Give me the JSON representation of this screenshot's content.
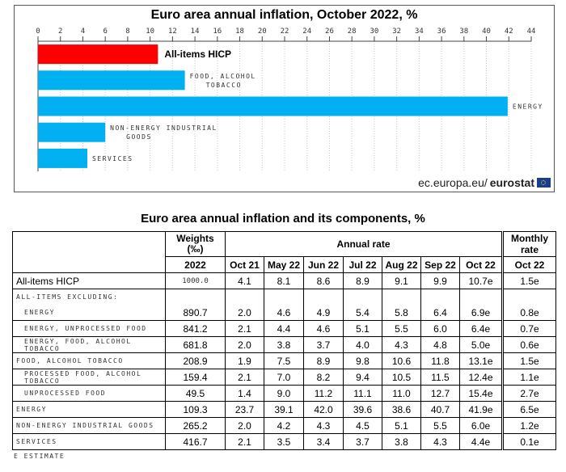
{
  "chart_data": {
    "type": "bar",
    "orientation": "horizontal",
    "title": "Euro area annual inflation, October 2022, %",
    "categories": [
      "All-items HICP",
      "FOOD, ALCOHOL TOBACCO",
      "ENERGY",
      "NON-ENERGY INDUSTRIAL GOODS",
      "SERVICES"
    ],
    "values": [
      10.7,
      13.1,
      41.9,
      6.0,
      4.4
    ],
    "colors": [
      "#ff0000",
      "#00b0f0",
      "#00b0f0",
      "#00b0f0",
      "#00b0f0"
    ],
    "xlim": [
      0,
      44
    ],
    "xticks": [
      0,
      2,
      4,
      6,
      8,
      10,
      12,
      14,
      16,
      18,
      20,
      22,
      24,
      26,
      28,
      30,
      32,
      34,
      36,
      38,
      40,
      42,
      44
    ],
    "xaxis_position": "top",
    "grid": true,
    "legend": "none"
  },
  "source": {
    "prefix": "ec.europa.eu/",
    "brand": "eurostat"
  },
  "table": {
    "title": "Euro area annual inflation and its components, %",
    "weights_header": "Weights",
    "weights_unit": "(‰)",
    "weights_year": "2022",
    "annual_header": "Annual rate",
    "monthly_header": "Monthly rate",
    "months": [
      "Oct 21",
      "May 22",
      "Jun 22",
      "Jul 22",
      "Aug 22",
      "Sep 22",
      "Oct 22"
    ],
    "monthly_month": "Oct 22",
    "rows": [
      {
        "label": "All-items HICP",
        "weight": "1000.0",
        "values": [
          "4.1",
          "8.1",
          "8.6",
          "8.9",
          "9.1",
          "9.9",
          "10.7e"
        ],
        "monthly": "1.5e"
      },
      {
        "label": "ALL-ITEMS EXCLUDING:",
        "weight": "",
        "values": [
          "",
          "",
          "",
          "",
          "",
          "",
          ""
        ],
        "monthly": ""
      },
      {
        "label": "ENERGY",
        "weight": "890.7",
        "values": [
          "2.0",
          "4.6",
          "4.9",
          "5.4",
          "5.8",
          "6.4",
          "6.9e"
        ],
        "monthly": "0.8e"
      },
      {
        "label": "ENERGY, UNPROCESSED FOOD",
        "weight": "841.2",
        "values": [
          "2.1",
          "4.4",
          "4.6",
          "5.1",
          "5.5",
          "6.0",
          "6.4e"
        ],
        "monthly": "0.7e"
      },
      {
        "label": "ENERGY, FOOD, ALCOHOL  TOBACCO",
        "weight": "681.8",
        "values": [
          "2.0",
          "3.8",
          "3.7",
          "4.0",
          "4.3",
          "4.8",
          "5.0e"
        ],
        "monthly": "0.6e"
      },
      {
        "label": "FOOD, ALCOHOL  TOBACCO",
        "weight": "208.9",
        "values": [
          "1.9",
          "7.5",
          "8.9",
          "9.8",
          "10.6",
          "11.8",
          "13.1e"
        ],
        "monthly": "1.5e"
      },
      {
        "label": "PROCESSED FOOD, ALCOHOL  TOBACCO",
        "weight": "159.4",
        "values": [
          "2.1",
          "7.0",
          "8.2",
          "9.4",
          "10.5",
          "11.5",
          "12.4e"
        ],
        "monthly": "1.1e"
      },
      {
        "label": "UNPROCESSED FOOD",
        "weight": "49.5",
        "values": [
          "1.4",
          "9.0",
          "11.2",
          "11.1",
          "11.0",
          "12.7",
          "15.4e"
        ],
        "monthly": "2.7e"
      },
      {
        "label": "ENERGY",
        "weight": "109.3",
        "values": [
          "23.7",
          "39.1",
          "42.0",
          "39.6",
          "38.6",
          "40.7",
          "41.9e"
        ],
        "monthly": "6.5e"
      },
      {
        "label": "NON-ENERGY INDUSTRIAL GOODS",
        "weight": "265.2",
        "values": [
          "2.0",
          "4.2",
          "4.3",
          "4.5",
          "5.1",
          "5.5",
          "6.0e"
        ],
        "monthly": "1.2e"
      },
      {
        "label": "SERVICES",
        "weight": "416.7",
        "values": [
          "2.1",
          "3.5",
          "3.4",
          "3.7",
          "3.8",
          "4.3",
          "4.4e"
        ],
        "monthly": "0.1e"
      }
    ],
    "footnote": "E ESTIMATE"
  }
}
